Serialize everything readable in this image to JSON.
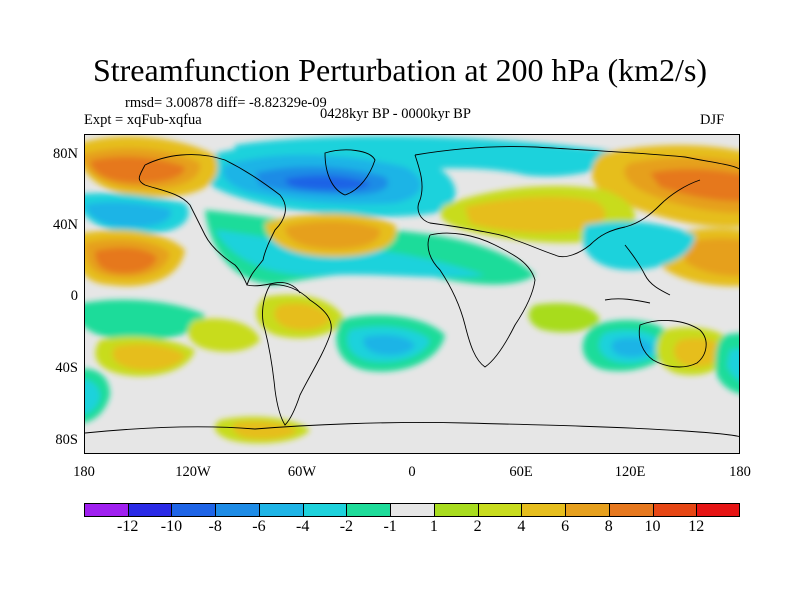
{
  "title": "Streamfunction Perturbation at 200 hPa (km2/s)",
  "stats": "rmsd= 3.00878 diff= -8.82329e-09",
  "experiment": "Expt = xqFub-xqfua",
  "period": "0428kyr BP - 0000kyr BP",
  "season": "DJF",
  "map": {
    "projection": "cylindrical equidistant",
    "lon_range": [
      -180,
      180
    ],
    "lat_range": [
      -90,
      90
    ],
    "lat_ticks": [
      "80N",
      "40N",
      "0",
      "40S",
      "80S"
    ],
    "lon_ticks": [
      "180",
      "120W",
      "60W",
      "0",
      "60E",
      "120E",
      "180"
    ]
  },
  "legend": {
    "labels": [
      "-12",
      "-10",
      "-8",
      "-6",
      "-4",
      "-2",
      "-1",
      "1",
      "2",
      "4",
      "6",
      "8",
      "10",
      "12"
    ],
    "colors": [
      "#a020f0",
      "#2a2ae6",
      "#1e64e6",
      "#1e8ce6",
      "#1eb4e6",
      "#1ed2dc",
      "#1edc9a",
      "#e6e6e6",
      "#a8dc1e",
      "#c8dc1e",
      "#e6be1e",
      "#e6a01e",
      "#e6781e",
      "#e64614",
      "#e61414"
    ]
  }
}
